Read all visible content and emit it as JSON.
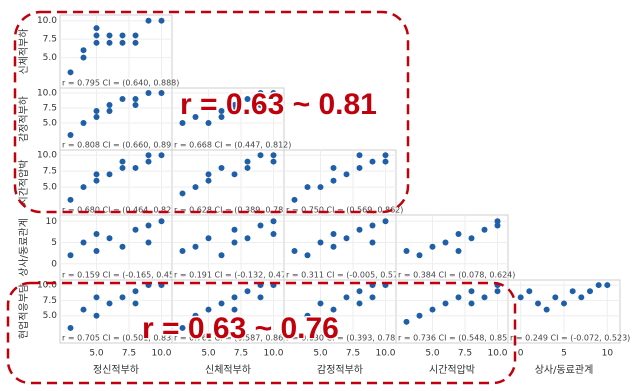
{
  "chart_data": {
    "type": "scatter-matrix",
    "annotations": [
      "r = 0.63 ~ 0.81",
      "r = 0.63 ~ 0.76"
    ],
    "point_color": "#1f5fa8",
    "columns": [
      {
        "name": "정신적부하",
        "xlim": [
          2.5,
          10.5
        ],
        "xticks": [
          {
            "value": 5,
            "label": "5.0"
          },
          {
            "value": 7.5,
            "label": "7.5"
          },
          {
            "value": 10,
            "label": "10.0"
          }
        ]
      },
      {
        "name": "신체적부하",
        "xlim": [
          2.5,
          10.5
        ],
        "xticks": [
          {
            "value": 5,
            "label": "5.0"
          },
          {
            "value": 7.5,
            "label": "7.5"
          },
          {
            "value": 10,
            "label": "10.0"
          }
        ]
      },
      {
        "name": "감정적부하",
        "xlim": [
          2.5,
          10.5
        ],
        "xticks": [
          {
            "value": 5,
            "label": "5.0"
          },
          {
            "value": 7.5,
            "label": "7.5"
          },
          {
            "value": 10,
            "label": "10.0"
          }
        ]
      },
      {
        "name": "시간적압박",
        "xlim": [
          2.5,
          10.5
        ],
        "xticks": [
          {
            "value": 5,
            "label": "5.0"
          },
          {
            "value": 7.5,
            "label": "7.5"
          },
          {
            "value": 10,
            "label": "10.0"
          }
        ]
      },
      {
        "name": "상사/동료관계",
        "xlim": [
          -1,
          11
        ],
        "xticks": [
          0,
          5,
          10
        ]
      }
    ],
    "rows": [
      {
        "name": "신체적부하",
        "ylim": [
          2.5,
          10.5
        ],
        "yticks": [
          {
            "value": 5,
            "label": "5.0"
          },
          {
            "value": 7.5,
            "label": "7.5"
          },
          {
            "value": 10,
            "label": "10.0"
          }
        ],
        "panels": [
          {
            "stat": "r = 0.795  CI = (0.640, 0.888)",
            "x": [
              3,
              4,
              4,
              5,
              5,
              5,
              6,
              6,
              7,
              7,
              8,
              8,
              9,
              10
            ],
            "y": [
              3,
              5,
              6,
              8,
              9,
              7,
              7,
              8,
              7,
              8,
              7,
              8,
              10,
              10
            ]
          }
        ]
      },
      {
        "name": "감정적부하",
        "ylim": [
          2.5,
          10.5
        ],
        "yticks": [
          {
            "value": 5,
            "label": "5.0"
          },
          {
            "value": 7.5,
            "label": "7.5"
          },
          {
            "value": 10,
            "label": "10.0"
          }
        ],
        "panels": [
          {
            "stat": "r = 0.808  CI = (0.660, 0.895)",
            "x": [
              3,
              4,
              5,
              5,
              6,
              6,
              7,
              8,
              8,
              9,
              10
            ],
            "y": [
              3,
              5,
              7,
              6,
              8,
              7,
              9,
              8,
              9,
              10,
              10
            ]
          },
          {
            "stat": "r = 0.668  CI = (0.447, 0.812)",
            "x": [
              3,
              4,
              5,
              6,
              6,
              7,
              7,
              8,
              9,
              9,
              10
            ],
            "y": [
              5,
              6,
              5,
              7,
              6,
              8,
              7,
              9,
              8,
              10,
              10
            ]
          }
        ]
      },
      {
        "name": "시간적압박",
        "ylim": [
          2.5,
          10.5
        ],
        "yticks": [
          {
            "value": 5,
            "label": "5.0"
          },
          {
            "value": 7.5,
            "label": "7.5"
          },
          {
            "value": 10,
            "label": "10.0"
          }
        ],
        "panels": [
          {
            "stat": "r = 0.680  CI = (0.464, 0.820)",
            "x": [
              3,
              4,
              5,
              5,
              6,
              7,
              7,
              8,
              9,
              9,
              10
            ],
            "y": [
              3,
              5,
              6,
              7,
              7,
              8,
              9,
              8,
              9,
              10,
              10
            ]
          },
          {
            "stat": "r = 0.628  CI = (0.389, 0.787)",
            "x": [
              3,
              4,
              5,
              5,
              6,
              7,
              8,
              8,
              9,
              10,
              10
            ],
            "y": [
              4,
              5,
              6,
              7,
              8,
              7,
              8,
              9,
              10,
              9,
              10
            ]
          },
          {
            "stat": "r = 0.750  CI = (0.569, 0.862)",
            "x": [
              3,
              4,
              5,
              6,
              6,
              7,
              8,
              8,
              9,
              10,
              10
            ],
            "y": [
              3,
              5,
              5,
              6,
              8,
              7,
              8,
              10,
              9,
              9,
              10
            ]
          }
        ]
      },
      {
        "name": "상사/동료관계",
        "ylim": [
          -1,
          11
        ],
        "yticks": [
          0,
          5,
          10
        ],
        "panels": [
          {
            "stat": "r = 0.159  CI = (-0.165, 0.452)",
            "x": [
              3,
              4,
              5,
              5,
              6,
              7,
              8,
              9,
              9,
              10
            ],
            "y": [
              2,
              5,
              3,
              7,
              6,
              4,
              8,
              9,
              5,
              10
            ]
          },
          {
            "stat": "r = 0.191  CI = (-0.132, 0.478)",
            "x": [
              3,
              4,
              5,
              6,
              7,
              7,
              8,
              9,
              10,
              10
            ],
            "y": [
              3,
              4,
              6,
              2,
              5,
              8,
              6,
              9,
              7,
              10
            ]
          },
          {
            "stat": "r = 0.311  CI = (-0.005, 0.570)",
            "x": [
              3,
              4,
              5,
              6,
              6,
              7,
              8,
              9,
              9,
              10
            ],
            "y": [
              3,
              2,
              5,
              4,
              7,
              6,
              8,
              5,
              9,
              10
            ]
          },
          {
            "stat": "r = 0.384  CI = (0.078, 0.624)",
            "x": [
              3,
              4,
              5,
              6,
              7,
              7,
              8,
              9,
              10,
              10
            ],
            "y": [
              3,
              2,
              4,
              5,
              3,
              7,
              6,
              8,
              9,
              10
            ]
          }
        ]
      },
      {
        "name": "현업적응부담",
        "ylim": [
          2.5,
          10.5
        ],
        "yticks": [
          {
            "value": 5,
            "label": "5.0"
          },
          {
            "value": 7.5,
            "label": "7.5"
          },
          {
            "value": 10,
            "label": "10.0"
          }
        ],
        "panels": [
          {
            "stat": "r = 0.705  CI = (0.501, 0.835)",
            "x": [
              3,
              4,
              5,
              5,
              6,
              7,
              8,
              8,
              9,
              10
            ],
            "y": [
              3,
              6,
              5,
              8,
              7,
              8,
              7,
              9,
              10,
              10
            ]
          },
          {
            "stat": "r = 0.761  CI = (0.587, 0.868)",
            "x": [
              3,
              4,
              5,
              6,
              7,
              7,
              8,
              9,
              9,
              10
            ],
            "y": [
              3,
              5,
              6,
              7,
              6,
              8,
              9,
              8,
              10,
              10
            ]
          },
          {
            "stat": "r = 0.630  CI = (0.393, 0.789)",
            "x": [
              3,
              4,
              5,
              6,
              7,
              8,
              8,
              9,
              9,
              10
            ],
            "y": [
              3,
              5,
              7,
              6,
              8,
              7,
              9,
              8,
              10,
              10
            ]
          },
          {
            "stat": "r = 0.736  CI = (0.548, 0.854)",
            "x": [
              3,
              4,
              5,
              6,
              7,
              8,
              8,
              9,
              10,
              10
            ],
            "y": [
              4,
              5,
              6,
              7,
              8,
              7,
              9,
              8,
              9,
              10
            ]
          },
          {
            "stat": "r = 0.249  CI = (-0.072, 0.523)",
            "x": [
              0,
              1,
              2,
              3,
              4,
              5,
              6,
              7,
              8,
              9,
              10
            ],
            "y": [
              8,
              9,
              7,
              6,
              8,
              7,
              9,
              8,
              9,
              10,
              10
            ]
          }
        ]
      }
    ]
  }
}
